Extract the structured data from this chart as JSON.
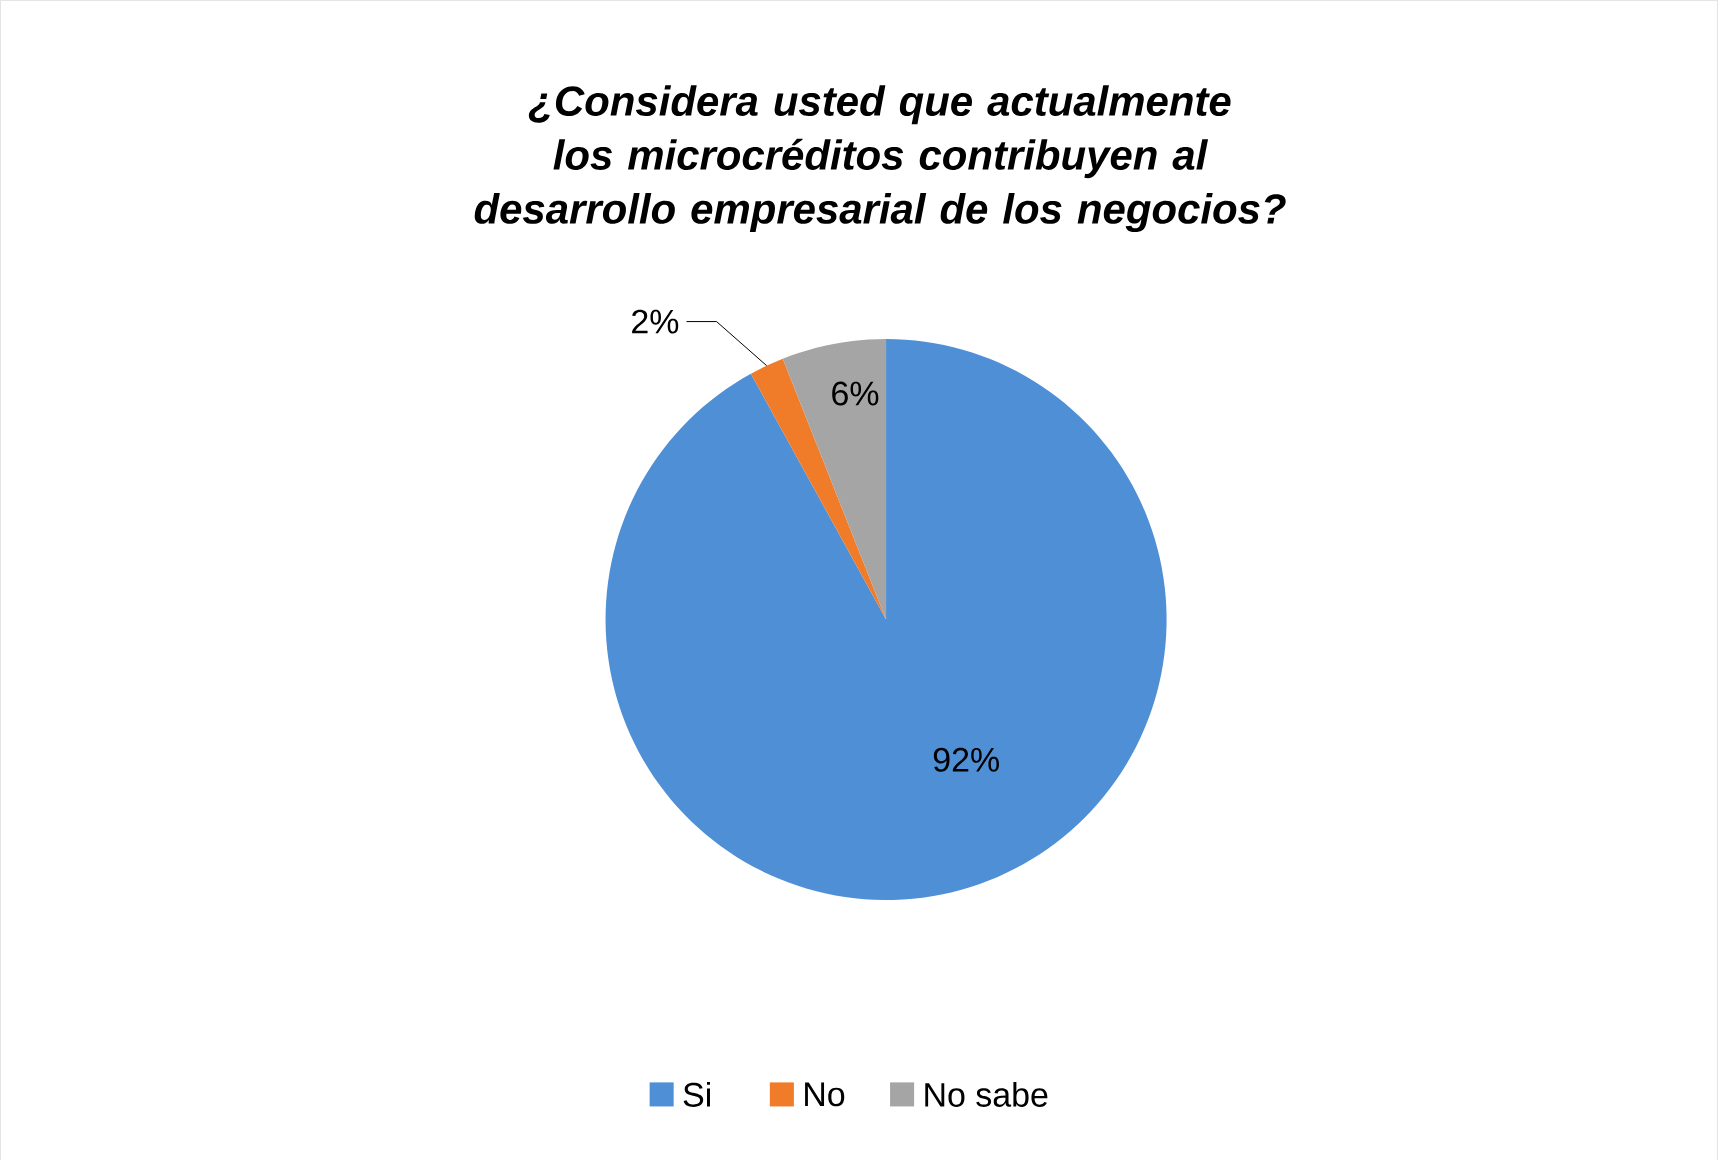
{
  "chart_data": {
    "type": "pie",
    "title": "¿Considera usted que actualmente los microcréditos contribuyen al desarrollo empresarial de los negocios?",
    "categories": [
      "Si",
      "No",
      "No sabe"
    ],
    "values": [
      92,
      2,
      6
    ],
    "value_labels": [
      "92%",
      "2%",
      "6%"
    ],
    "colors": [
      "#4f8fd6",
      "#f07c2a",
      "#a5a5a5"
    ],
    "legend": "bottom"
  }
}
